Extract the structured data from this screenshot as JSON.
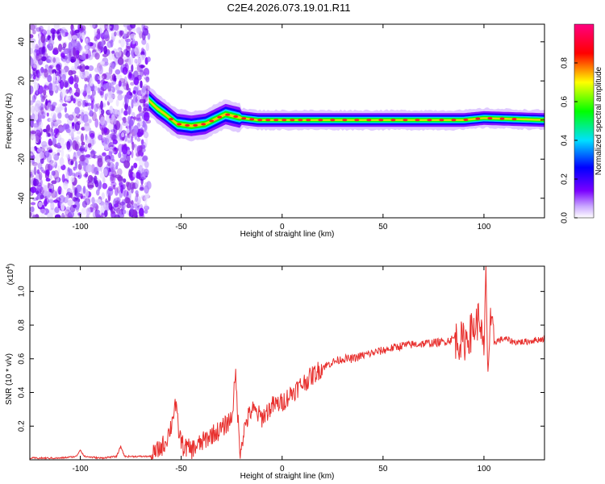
{
  "figure": {
    "title": "C2E4.2026.073.19.01.R11"
  },
  "chart_data": [
    {
      "type": "heatmap",
      "title": "C2E4.2026.073.19.01.R11",
      "xlabel": "Height of straight line (km)",
      "ylabel": "Frequency (Hz)",
      "xlim": [
        -125,
        130
      ],
      "ylim": [
        -50,
        49
      ],
      "xticks": [
        -100,
        -50,
        0,
        50,
        100
      ],
      "yticks": [
        -40,
        -20,
        0,
        20,
        40
      ],
      "xtick_labels": [
        "-100",
        "-50",
        "0",
        "50",
        "100"
      ],
      "ytick_labels": [
        "-40",
        "-20",
        "0",
        "20",
        "40"
      ],
      "description_regions": [
        {
          "x_from": -125,
          "x_to": -66,
          "content": "broadband noise, amplitude ~0.0-0.2"
        },
        {
          "x_from": -66,
          "x_to": 130,
          "content": "narrow signal band near 0 Hz, amplitude up to ~1.0"
        }
      ],
      "signal_track": [
        {
          "x": -66,
          "f": 10
        },
        {
          "x": -62,
          "f": 6
        },
        {
          "x": -58,
          "f": 3
        },
        {
          "x": -52,
          "f": -2
        },
        {
          "x": -45,
          "f": -3
        },
        {
          "x": -38,
          "f": -2
        },
        {
          "x": -32,
          "f": 1
        },
        {
          "x": -28,
          "f": 3
        },
        {
          "x": -20,
          "f": 1
        },
        {
          "x": -12,
          "f": 0
        },
        {
          "x": 0,
          "f": 0
        },
        {
          "x": 50,
          "f": 0
        },
        {
          "x": 90,
          "f": 0
        },
        {
          "x": 100,
          "f": 1
        },
        {
          "x": 130,
          "f": 0
        }
      ],
      "colorbar": {
        "label": "Normalized spectral amplitude",
        "range": [
          0,
          1
        ],
        "ticks": [
          0.0,
          0.2,
          0.4,
          0.6,
          0.8
        ],
        "tick_labels": [
          "0.0",
          "0.2",
          "0.4",
          "0.6",
          "0.8"
        ],
        "colors": [
          "#ffffff",
          "#7a00ff",
          "#0000ff",
          "#00ffff",
          "#00ff00",
          "#ffff00",
          "#ff0000",
          "#ff0080"
        ]
      }
    },
    {
      "type": "line",
      "xlabel": "Height of straight line (km)",
      "ylabel": "SNR (10 * v/v)",
      "y_exponent_label": "(x10",
      "y_exponent_power": "4",
      "y_exponent_close": ")",
      "xlim": [
        -125,
        130
      ],
      "ylim": [
        0,
        1.15
      ],
      "xticks": [
        -100,
        -50,
        0,
        50,
        100
      ],
      "yticks": [
        0.2,
        0.4,
        0.6,
        0.8,
        1.0
      ],
      "xtick_labels": [
        "-100",
        "-50",
        "0",
        "50",
        "100"
      ],
      "ytick_labels": [
        "0.2",
        "0.4",
        "0.6",
        "0.8",
        "1.0"
      ],
      "color": "#e8302e",
      "series": [
        {
          "name": "SNR",
          "x": [
            -125,
            -110,
            -102,
            -100,
            -98,
            -90,
            -82,
            -80,
            -78,
            -70,
            -65,
            -62,
            -58,
            -55,
            -53,
            -51,
            -49,
            -45,
            -40,
            -35,
            -30,
            -25,
            -23,
            -21,
            -18,
            -15,
            -10,
            -5,
            0,
            5,
            10,
            15,
            20,
            25,
            30,
            35,
            40,
            50,
            60,
            70,
            80,
            85,
            90,
            95,
            98,
            100,
            101,
            102,
            103,
            105,
            110,
            115,
            120,
            125,
            130
          ],
          "y": [
            0.01,
            0.01,
            0.02,
            0.06,
            0.02,
            0.01,
            0.02,
            0.08,
            0.02,
            0.02,
            0.02,
            0.05,
            0.1,
            0.2,
            0.34,
            0.15,
            0.08,
            0.06,
            0.1,
            0.15,
            0.18,
            0.25,
            0.5,
            0.05,
            0.22,
            0.3,
            0.25,
            0.32,
            0.34,
            0.4,
            0.45,
            0.5,
            0.55,
            0.58,
            0.6,
            0.6,
            0.62,
            0.65,
            0.68,
            0.69,
            0.7,
            0.72,
            0.7,
            0.78,
            0.85,
            0.6,
            1.15,
            0.5,
            0.8,
            0.7,
            0.72,
            0.7,
            0.7,
            0.71,
            0.72
          ]
        }
      ]
    }
  ]
}
